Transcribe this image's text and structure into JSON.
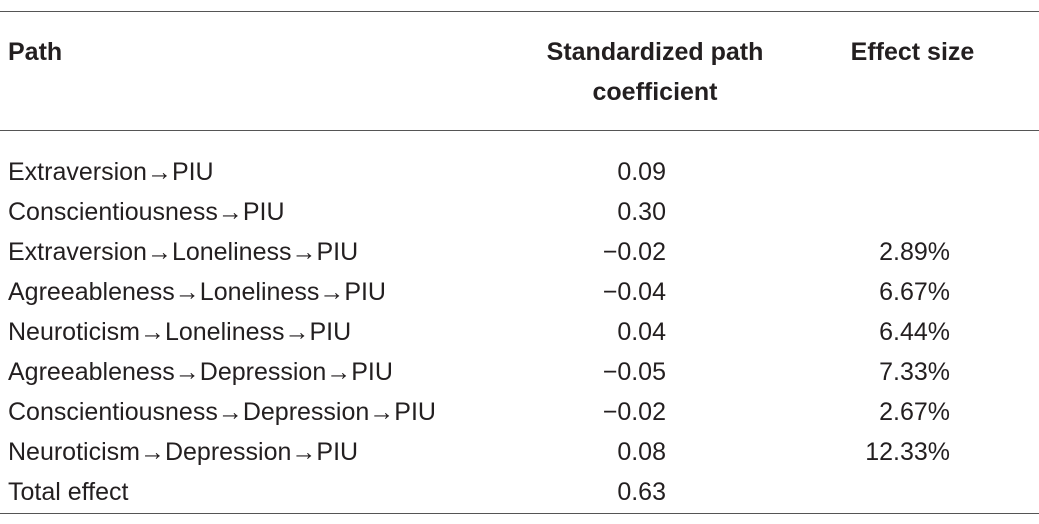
{
  "table": {
    "headers": [
      "Path",
      "Standardized path coefficient",
      "Effect size"
    ],
    "rows": [
      [
        "Extraversion→PIU",
        "0.09"
      ],
      [
        "Conscientiousness→PIU",
        "0.30"
      ],
      [
        "Extraversion→Loneliness→PIU",
        "−0.02",
        "2.89%"
      ],
      [
        "Agreeableness→Loneliness→PIU",
        "−0.04",
        "6.67%"
      ],
      [
        "Neuroticism→Loneliness→PIU",
        "0.04",
        "6.44%"
      ],
      [
        "Agreeableness→Depression→PIU",
        "−0.05",
        "7.33%"
      ],
      [
        "Conscientiousness→Depression→PIU",
        "−0.02",
        "2.67%"
      ],
      [
        "Neuroticism→Depression→PIU",
        "0.08",
        "12.33%"
      ],
      [
        "Total effect",
        "0.63"
      ]
    ]
  }
}
